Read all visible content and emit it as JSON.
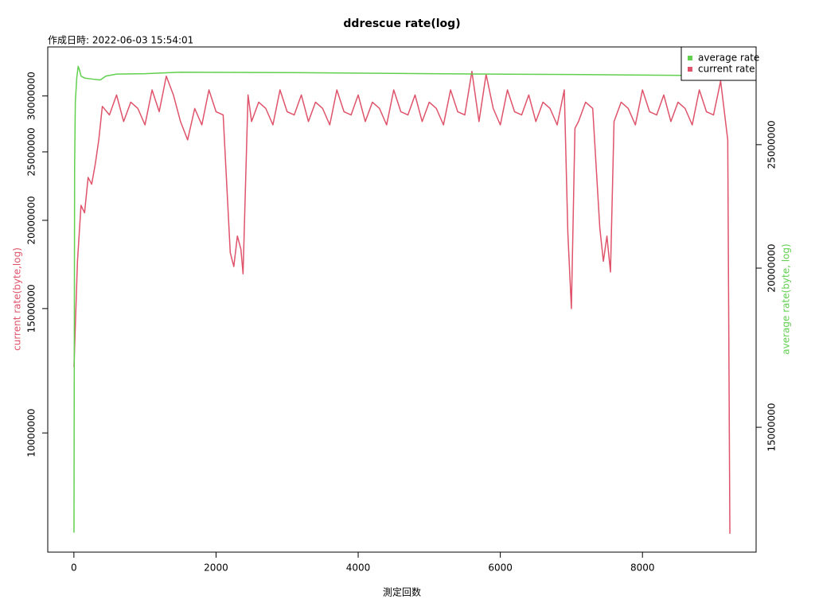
{
  "chart_data": {
    "type": "line",
    "title": "ddrescue rate(log)",
    "subtitle": "作成日時: 2022-06-03 15:54:01",
    "x_label": "測定回数",
    "y_label": "current rate(byte,log)",
    "y2_label": "average rate(byte, log)",
    "log_y": true,
    "log_y2": true,
    "xlim": [
      -368,
      9599
    ],
    "xticks": [
      0,
      2000,
      4000,
      6000,
      8000
    ],
    "ylim": [
      6780000,
      35200000
    ],
    "yticks": [
      10000000,
      15000000,
      20000000,
      25000000,
      30000000
    ],
    "y2lim": [
      11970000,
      29830000
    ],
    "y2ticks": [
      15000000,
      20000000,
      25000000
    ],
    "legend": "top-right",
    "series": [
      {
        "name": "average rate",
        "color": "#61D04F",
        "axis": "y2",
        "x": [
          1,
          10,
          20,
          40,
          60,
          80,
          100,
          150,
          250,
          370,
          450,
          600,
          1000,
          1500,
          3000,
          5000,
          7000,
          8000,
          9230
        ],
        "values": [
          12400000,
          24000000,
          27000000,
          28200000,
          28800000,
          28600000,
          28300000,
          28200000,
          28150000,
          28100000,
          28300000,
          28400000,
          28420000,
          28500000,
          28480000,
          28420000,
          28380000,
          28350000,
          28320000
        ]
      },
      {
        "name": "current rate",
        "color": "#DF536B",
        "x": [
          1,
          50,
          100,
          150,
          200,
          250,
          300,
          350,
          400,
          500,
          600,
          700,
          800,
          900,
          1000,
          1100,
          1200,
          1300,
          1400,
          1500,
          1600,
          1700,
          1800,
          1900,
          2000,
          2100,
          2200,
          2250,
          2300,
          2350,
          2380,
          2450,
          2500,
          2600,
          2700,
          2800,
          2900,
          3000,
          3100,
          3200,
          3300,
          3400,
          3500,
          3600,
          3700,
          3800,
          3900,
          4000,
          4100,
          4200,
          4300,
          4400,
          4500,
          4600,
          4700,
          4800,
          4900,
          5000,
          5100,
          5200,
          5300,
          5400,
          5500,
          5600,
          5700,
          5800,
          5900,
          6000,
          6100,
          6200,
          6300,
          6400,
          6500,
          6600,
          6700,
          6800,
          6900,
          6950,
          7000,
          7050,
          7100,
          7200,
          7300,
          7400,
          7450,
          7500,
          7550,
          7600,
          7700,
          7800,
          7900,
          8000,
          8100,
          8200,
          8300,
          8400,
          8500,
          8600,
          8700,
          8800,
          8900,
          9000,
          9100,
          9200,
          9230
        ],
        "values": [
          12400000,
          17500000,
          21000000,
          20500000,
          23000000,
          22500000,
          24000000,
          26000000,
          29000000,
          28200000,
          30100000,
          27600000,
          29400000,
          28800000,
          27300000,
          30600000,
          28500000,
          32000000,
          30100000,
          27600000,
          26000000,
          28800000,
          27300000,
          30600000,
          28500000,
          28200000,
          18000000,
          17200000,
          19000000,
          18200000,
          16800000,
          30100000,
          27600000,
          29400000,
          28800000,
          27300000,
          30600000,
          28500000,
          28200000,
          30100000,
          27600000,
          29400000,
          28800000,
          27300000,
          30600000,
          28500000,
          28200000,
          30100000,
          27600000,
          29400000,
          28800000,
          27300000,
          30600000,
          28500000,
          28200000,
          30100000,
          27600000,
          29400000,
          28800000,
          27300000,
          30600000,
          28500000,
          28200000,
          32500000,
          27600000,
          32200000,
          28800000,
          27300000,
          30600000,
          28500000,
          28200000,
          30100000,
          27600000,
          29400000,
          28800000,
          27300000,
          30600000,
          19200000,
          15000000,
          27000000,
          27600000,
          29400000,
          28800000,
          19500000,
          17500000,
          19000000,
          16900000,
          27600000,
          29400000,
          28800000,
          27300000,
          30600000,
          28500000,
          28200000,
          30100000,
          27600000,
          29400000,
          28800000,
          27300000,
          30600000,
          28500000,
          28200000,
          31500000,
          26000000,
          7200000
        ]
      }
    ]
  }
}
